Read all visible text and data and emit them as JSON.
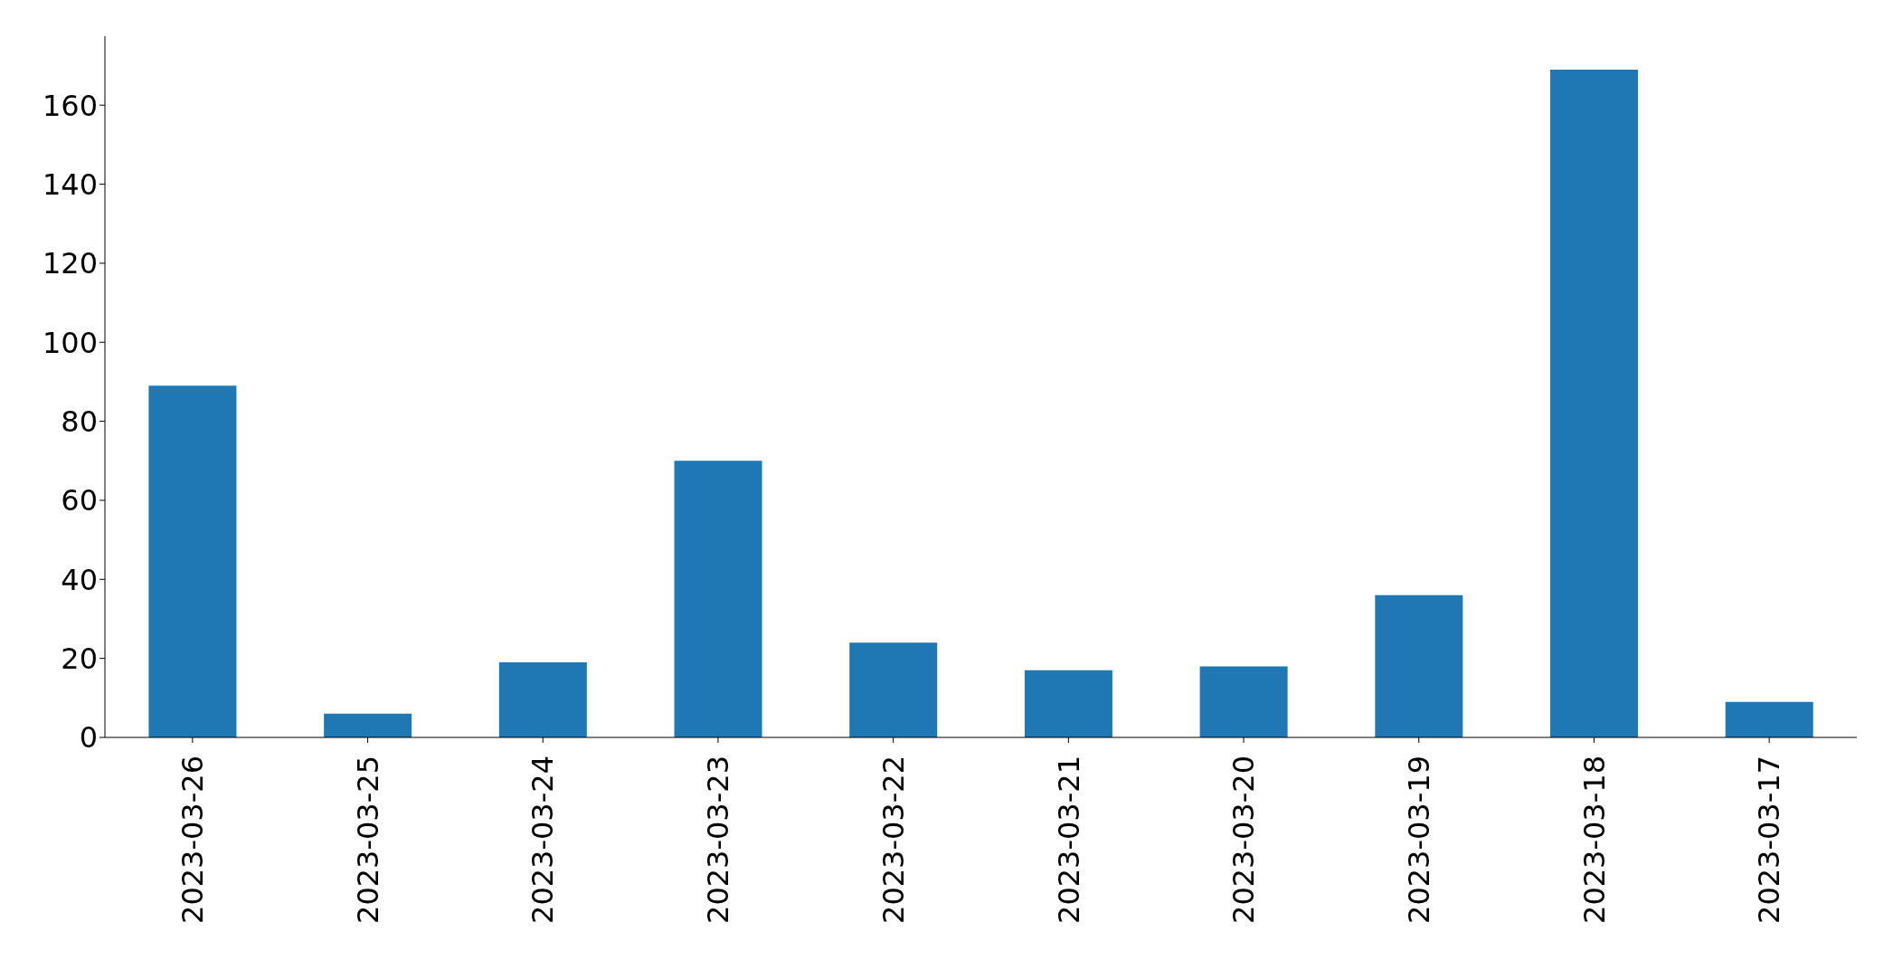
{
  "chart_data": {
    "type": "bar",
    "categories": [
      "2023-03-26",
      "2023-03-25",
      "2023-03-24",
      "2023-03-23",
      "2023-03-22",
      "2023-03-21",
      "2023-03-20",
      "2023-03-19",
      "2023-03-18",
      "2023-03-17"
    ],
    "values": [
      89,
      6,
      19,
      70,
      24,
      17,
      18,
      36,
      169,
      9
    ],
    "color": "#1f77b4",
    "ylim": [
      0,
      177.45
    ],
    "yticks": [
      0,
      20,
      40,
      60,
      80,
      100,
      120,
      140,
      160
    ],
    "grid": false,
    "legend": false
  }
}
